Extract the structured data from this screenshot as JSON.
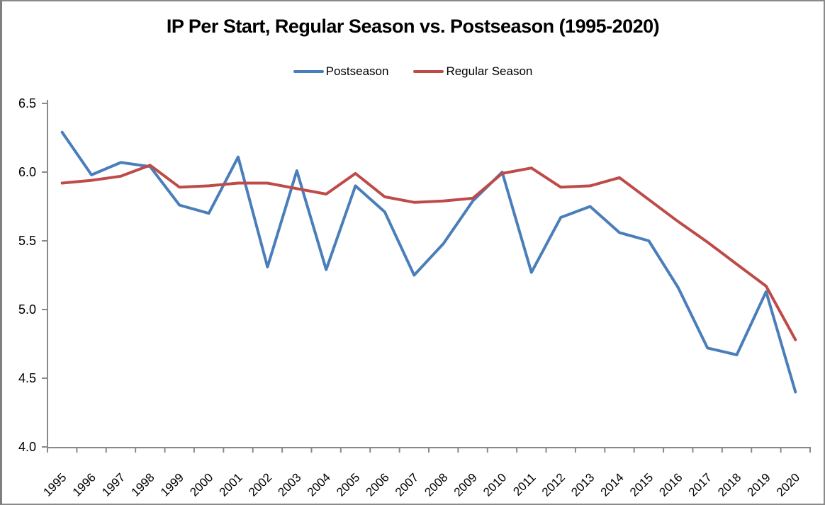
{
  "title": "IP Per Start, Regular Season vs. Postseason (1995-2020)",
  "legend": {
    "items": [
      {
        "label": "Postseason",
        "color": "#4A7EBB"
      },
      {
        "label": "Regular Season",
        "color": "#BE4B48"
      }
    ]
  },
  "axis_colors": {
    "line": "#898989",
    "tick": "#898989",
    "label": "#000000"
  },
  "chart_data": {
    "type": "line",
    "title": "IP Per Start, Regular Season vs. Postseason (1995-2020)",
    "x": [
      1995,
      1996,
      1997,
      1998,
      1999,
      2000,
      2001,
      2002,
      2003,
      2004,
      2005,
      2006,
      2007,
      2008,
      2009,
      2010,
      2011,
      2012,
      2013,
      2014,
      2015,
      2016,
      2017,
      2018,
      2019,
      2020
    ],
    "series": [
      {
        "name": "Postseason",
        "color": "#4A7EBB",
        "values": [
          6.29,
          5.98,
          6.07,
          6.04,
          5.76,
          5.7,
          6.11,
          5.31,
          6.01,
          5.29,
          5.9,
          5.71,
          5.25,
          5.48,
          5.79,
          6.0,
          5.27,
          5.67,
          5.75,
          5.56,
          5.5,
          5.16,
          4.72,
          4.67,
          5.13,
          4.4
        ]
      },
      {
        "name": "Regular Season",
        "color": "#BE4B48",
        "values": [
          5.92,
          5.94,
          5.97,
          6.05,
          5.89,
          5.9,
          5.92,
          5.92,
          5.88,
          5.84,
          5.99,
          5.82,
          5.78,
          5.79,
          5.81,
          5.99,
          6.03,
          5.89,
          5.9,
          5.96,
          5.8,
          5.64,
          5.49,
          5.33,
          5.17,
          4.78
        ]
      }
    ],
    "xlabel": "",
    "ylabel": "",
    "ylim": [
      4.0,
      6.5
    ],
    "ytick_labels": [
      "6.5",
      "6.0",
      "5.5",
      "5.0",
      "4.5",
      "4.0"
    ],
    "grid": false,
    "legend_position": "top"
  }
}
